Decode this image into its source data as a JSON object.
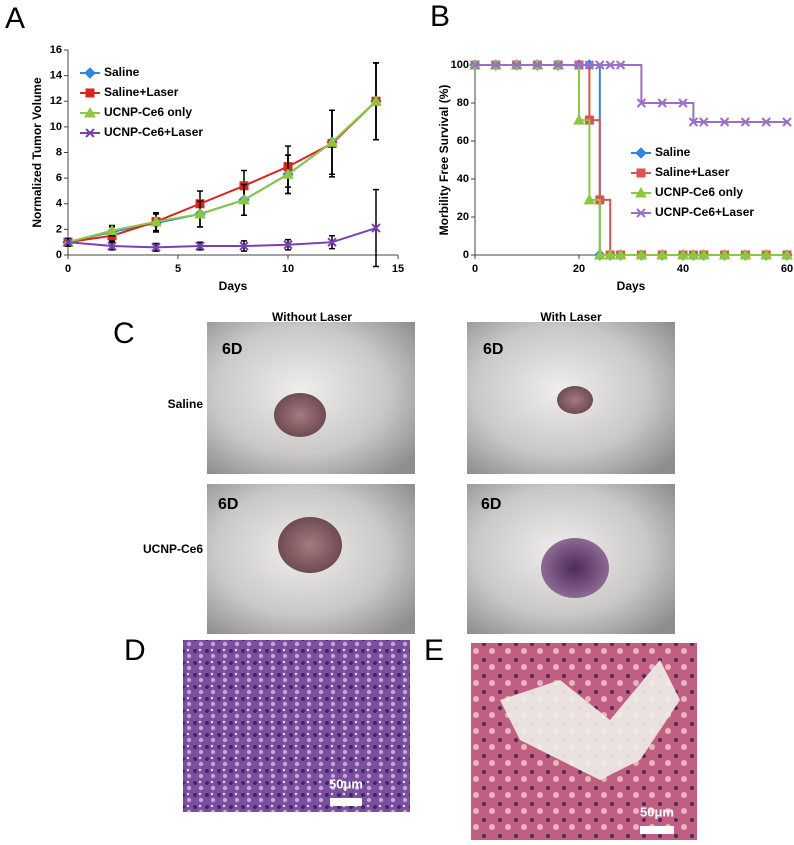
{
  "chart_data": [
    {
      "type": "line",
      "panel_label": "A",
      "x_label": "Days",
      "y_label": "Normalized Tumor Volume",
      "x": [
        0,
        2,
        4,
        6,
        8,
        10,
        12,
        14
      ],
      "xlim": [
        0,
        15
      ],
      "xticks": [
        0,
        5,
        10,
        15
      ],
      "ylim": [
        0,
        16
      ],
      "yticks": [
        0,
        2,
        4,
        6,
        8,
        10,
        12,
        14,
        16
      ],
      "legend": "upper left",
      "series": [
        {
          "name": "Saline",
          "color": "#2e86de",
          "values": [
            1,
            1.8,
            2.5,
            3.2,
            4.3,
            6.3,
            8.8,
            12
          ],
          "errors": [
            0.3,
            0.4,
            0.7,
            1,
            1.2,
            1.5,
            2.5,
            3
          ]
        },
        {
          "name": "Saline+Laser",
          "color": "#d7261e",
          "values": [
            1,
            1.5,
            2.6,
            4,
            5.4,
            6.9,
            8.7,
            12
          ],
          "errors": [
            0.3,
            0.4,
            0.7,
            1,
            1.2,
            1.6,
            2.6,
            3
          ]
        },
        {
          "name": "UCNP-Ce6 only",
          "color": "#8dc63f",
          "values": [
            1,
            1.9,
            2.6,
            3.2,
            4.3,
            6.3,
            8.8,
            12
          ],
          "errors": [
            0.3,
            0.4,
            0.7,
            1,
            1.2,
            1.5,
            2.5,
            3
          ]
        },
        {
          "name": "UCNP-Ce6+Laser",
          "color": "#7b3fb5",
          "values": [
            1,
            0.7,
            0.6,
            0.7,
            0.7,
            0.8,
            1,
            2.1
          ],
          "errors": [
            0.3,
            0.3,
            0.3,
            0.3,
            0.4,
            0.4,
            0.5,
            3
          ]
        }
      ]
    },
    {
      "type": "step",
      "panel_label": "B",
      "x_label": "Days",
      "y_label": "Morbility Free Survival (%)",
      "x": [
        0,
        4,
        8,
        12,
        16,
        20,
        22,
        24,
        26,
        28,
        32,
        36,
        40,
        42,
        44,
        48,
        52,
        56,
        60
      ],
      "xlim": [
        0,
        60
      ],
      "xticks": [
        0,
        20,
        40,
        60
      ],
      "ylim": [
        0,
        100
      ],
      "yticks": [
        0,
        20,
        40,
        60,
        80,
        100
      ],
      "legend": "center right",
      "series": [
        {
          "name": "Saline",
          "color": "#2e86de",
          "values": [
            100,
            100,
            100,
            100,
            100,
            100,
            100,
            0,
            0,
            0,
            0,
            0,
            0,
            0,
            0,
            0,
            0,
            0,
            0
          ]
        },
        {
          "name": "Saline+Laser",
          "color": "#d9534f",
          "values": [
            100,
            100,
            100,
            100,
            100,
            100,
            71,
            29,
            0,
            0,
            0,
            0,
            0,
            0,
            0,
            0,
            0,
            0,
            0
          ]
        },
        {
          "name": "UCNP-Ce6 only",
          "color": "#8dc63f",
          "values": [
            100,
            100,
            100,
            100,
            100,
            71,
            29,
            0,
            0,
            0,
            0,
            0,
            0,
            0,
            0,
            0,
            0,
            0,
            0
          ]
        },
        {
          "name": "UCNP-Ce6+Laser",
          "color": "#9b6fc8",
          "values": [
            100,
            100,
            100,
            100,
            100,
            100,
            100,
            100,
            100,
            100,
            80,
            80,
            80,
            70,
            70,
            70,
            70,
            70,
            70
          ]
        }
      ]
    }
  ],
  "panels": {
    "c": {
      "label": "C",
      "col1": "Without Laser",
      "col2": "With Laser",
      "row1": "Saline",
      "row2": "UCNP-Ce6",
      "days": [
        "6D",
        "6D",
        "6D",
        "6D"
      ]
    },
    "d": {
      "label": "D",
      "scale": "50μm"
    },
    "e": {
      "label": "E",
      "scale": "50μm"
    }
  }
}
